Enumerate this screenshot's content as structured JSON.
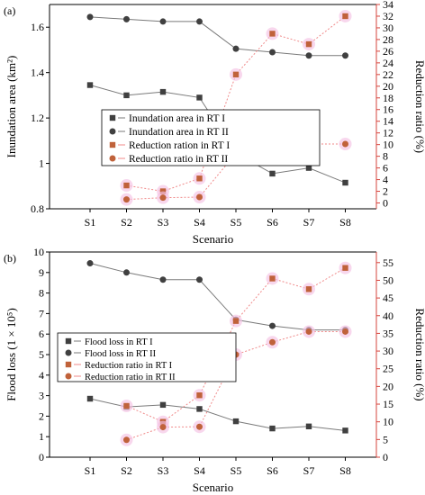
{
  "chart_data": [
    {
      "panel_label": "(a)",
      "type": "line",
      "categories": [
        "S1",
        "S2",
        "S3",
        "S4",
        "S5",
        "S6",
        "S7",
        "S8"
      ],
      "xlabel": "Scenario",
      "ylabel_left": "Inundation area (km²)",
      "ylabel_right": "Reduction ratio (%)",
      "ylim_left": [
        0.8,
        1.7
      ],
      "yticks_left": [
        "0.8",
        "1",
        "1.2",
        "1.4",
        "1.6"
      ],
      "ylim_right": [
        -1,
        34
      ],
      "yticks_right": [
        "0",
        "2",
        "4",
        "6",
        "8",
        "10",
        "12",
        "14",
        "16",
        "18",
        "20",
        "22",
        "24",
        "26",
        "28",
        "30",
        "32",
        "34"
      ],
      "legend_position": "left",
      "series": [
        {
          "name": "Inundation area in RT I",
          "axis": "left",
          "marker": "square",
          "color": "#404040",
          "x": [
            "S1",
            "S2",
            "S3",
            "S4",
            "S5",
            "S6",
            "S7",
            "S8"
          ],
          "values": [
            1.345,
            1.3,
            1.315,
            1.29,
            1.045,
            0.955,
            0.98,
            0.915
          ]
        },
        {
          "name": "Inundation area in RT II",
          "axis": "left",
          "marker": "circle",
          "color": "#404040",
          "x": [
            "S1",
            "S2",
            "S3",
            "S4",
            "S5",
            "S6",
            "S7",
            "S8"
          ],
          "values": [
            1.645,
            1.635,
            1.625,
            1.625,
            1.505,
            1.49,
            1.475,
            1.475
          ]
        },
        {
          "name": "Reduction ration in RT I",
          "axis": "right",
          "marker": "square",
          "color": "#c0623a",
          "x": [
            "S2",
            "S3",
            "S4",
            "S5",
            "S6",
            "S7",
            "S8"
          ],
          "values": [
            3.0,
            2.0,
            4.2,
            22.0,
            29.0,
            27.2,
            32.0
          ]
        },
        {
          "name": "Reduction ratio in RT II",
          "axis": "right",
          "marker": "circle",
          "color": "#c0623a",
          "x": [
            "S2",
            "S3",
            "S4",
            "S5",
            "S6",
            "S7",
            "S8"
          ],
          "values": [
            0.6,
            0.9,
            1.0,
            8.5,
            9.3,
            10.1,
            10.1
          ]
        }
      ]
    },
    {
      "panel_label": "(b)",
      "type": "line",
      "categories": [
        "S1",
        "S2",
        "S3",
        "S4",
        "S5",
        "S6",
        "S7",
        "S8"
      ],
      "xlabel": "Scenario",
      "ylabel_left": "Flood loss (1 × 10⁵)",
      "ylabel_right": "Reduction ratio (%)",
      "ylim_left": [
        0,
        10
      ],
      "yticks_left": [
        "0",
        "1",
        "2",
        "3",
        "4",
        "5",
        "6",
        "7",
        "8",
        "9",
        "10"
      ],
      "ylim_right": [
        0,
        58
      ],
      "yticks_right": [
        "0",
        "5",
        "10",
        "15",
        "20",
        "25",
        "30",
        "35",
        "40",
        "45",
        "50",
        "55"
      ],
      "legend_position": "left",
      "series": [
        {
          "name": "Flood loss in RT I",
          "axis": "left",
          "marker": "square",
          "color": "#404040",
          "x": [
            "S1",
            "S2",
            "S3",
            "S4",
            "S5",
            "S6",
            "S7",
            "S8"
          ],
          "values": [
            2.85,
            2.45,
            2.55,
            2.35,
            1.75,
            1.4,
            1.5,
            1.3
          ]
        },
        {
          "name": "Flood loss in RT II",
          "axis": "left",
          "marker": "circle",
          "color": "#404040",
          "x": [
            "S1",
            "S2",
            "S3",
            "S4",
            "S5",
            "S6",
            "S7",
            "S8"
          ],
          "values": [
            9.45,
            9.0,
            8.65,
            8.65,
            6.7,
            6.4,
            6.2,
            6.2
          ]
        },
        {
          "name": "Reduction ratio in RT I",
          "axis": "right",
          "marker": "square",
          "color": "#c0623a",
          "x": [
            "S2",
            "S3",
            "S4",
            "S5",
            "S6",
            "S7",
            "S8"
          ],
          "values": [
            14.5,
            10.0,
            17.5,
            38.5,
            50.5,
            47.5,
            53.5
          ]
        },
        {
          "name": "Reduction ratio in RT II",
          "axis": "right",
          "marker": "circle",
          "color": "#c0623a",
          "x": [
            "S2",
            "S3",
            "S4",
            "S5",
            "S6",
            "S7",
            "S8"
          ],
          "values": [
            4.9,
            8.5,
            8.6,
            29.0,
            32.5,
            35.5,
            35.5
          ]
        }
      ]
    }
  ]
}
